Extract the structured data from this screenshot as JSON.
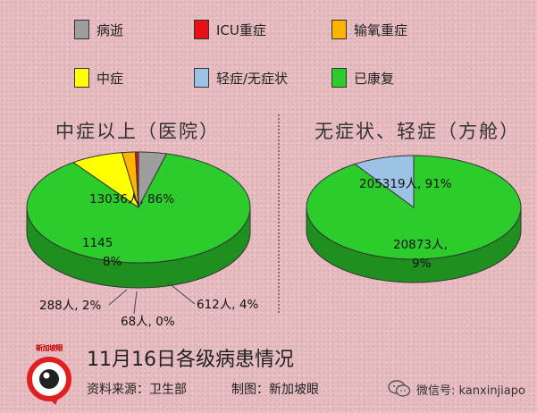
{
  "legend": [
    {
      "label": "病逝",
      "color": "#9e9e9e"
    },
    {
      "label": "ICU重症",
      "color": "#e81010"
    },
    {
      "label": "输氧重症",
      "color": "#ffb400"
    },
    {
      "label": "中症",
      "color": "#ffff00"
    },
    {
      "label": "轻症/无症状",
      "color": "#9cc3e6"
    },
    {
      "label": "已康复",
      "color": "#2dcc2d"
    }
  ],
  "left_title": "中症以上（医院）",
  "right_title": "无症状、轻症（方舱）",
  "chart_data": [
    {
      "type": "pie",
      "title": "中症以上（医院）",
      "slices": [
        {
          "name": "已康复",
          "value": 13036,
          "label": "13036人, 86%",
          "color": "#2dcc2d"
        },
        {
          "name": "中症",
          "value": 1145,
          "label_line1": "1145",
          "label_line2": "8%",
          "color": "#ffff00"
        },
        {
          "name": "输氧重症",
          "value": 288,
          "label": "288人, 2%",
          "color": "#ffb400"
        },
        {
          "name": "ICU重症",
          "value": 68,
          "label": "68人, 0%",
          "color": "#e81010"
        },
        {
          "name": "病逝",
          "value": 612,
          "label": "612人, 4%",
          "color": "#9e9e9e"
        }
      ]
    },
    {
      "type": "pie",
      "title": "无症状、轻症（方舱）",
      "slices": [
        {
          "name": "已康复",
          "value": 205319,
          "label": "205319人, 91%",
          "color": "#2dcc2d"
        },
        {
          "name": "轻症/无症状",
          "value": 20873,
          "label_line1": "20873人,",
          "label_line2": "9%",
          "color": "#9cc3e6"
        }
      ]
    }
  ],
  "footer": {
    "title": "11月16日各级病患情况",
    "source": "资料来源：卫生部",
    "credit": "制图：新加坡眼",
    "logo_text": "新加坡眼",
    "wechat": "微信号: kanxinjiapo"
  }
}
